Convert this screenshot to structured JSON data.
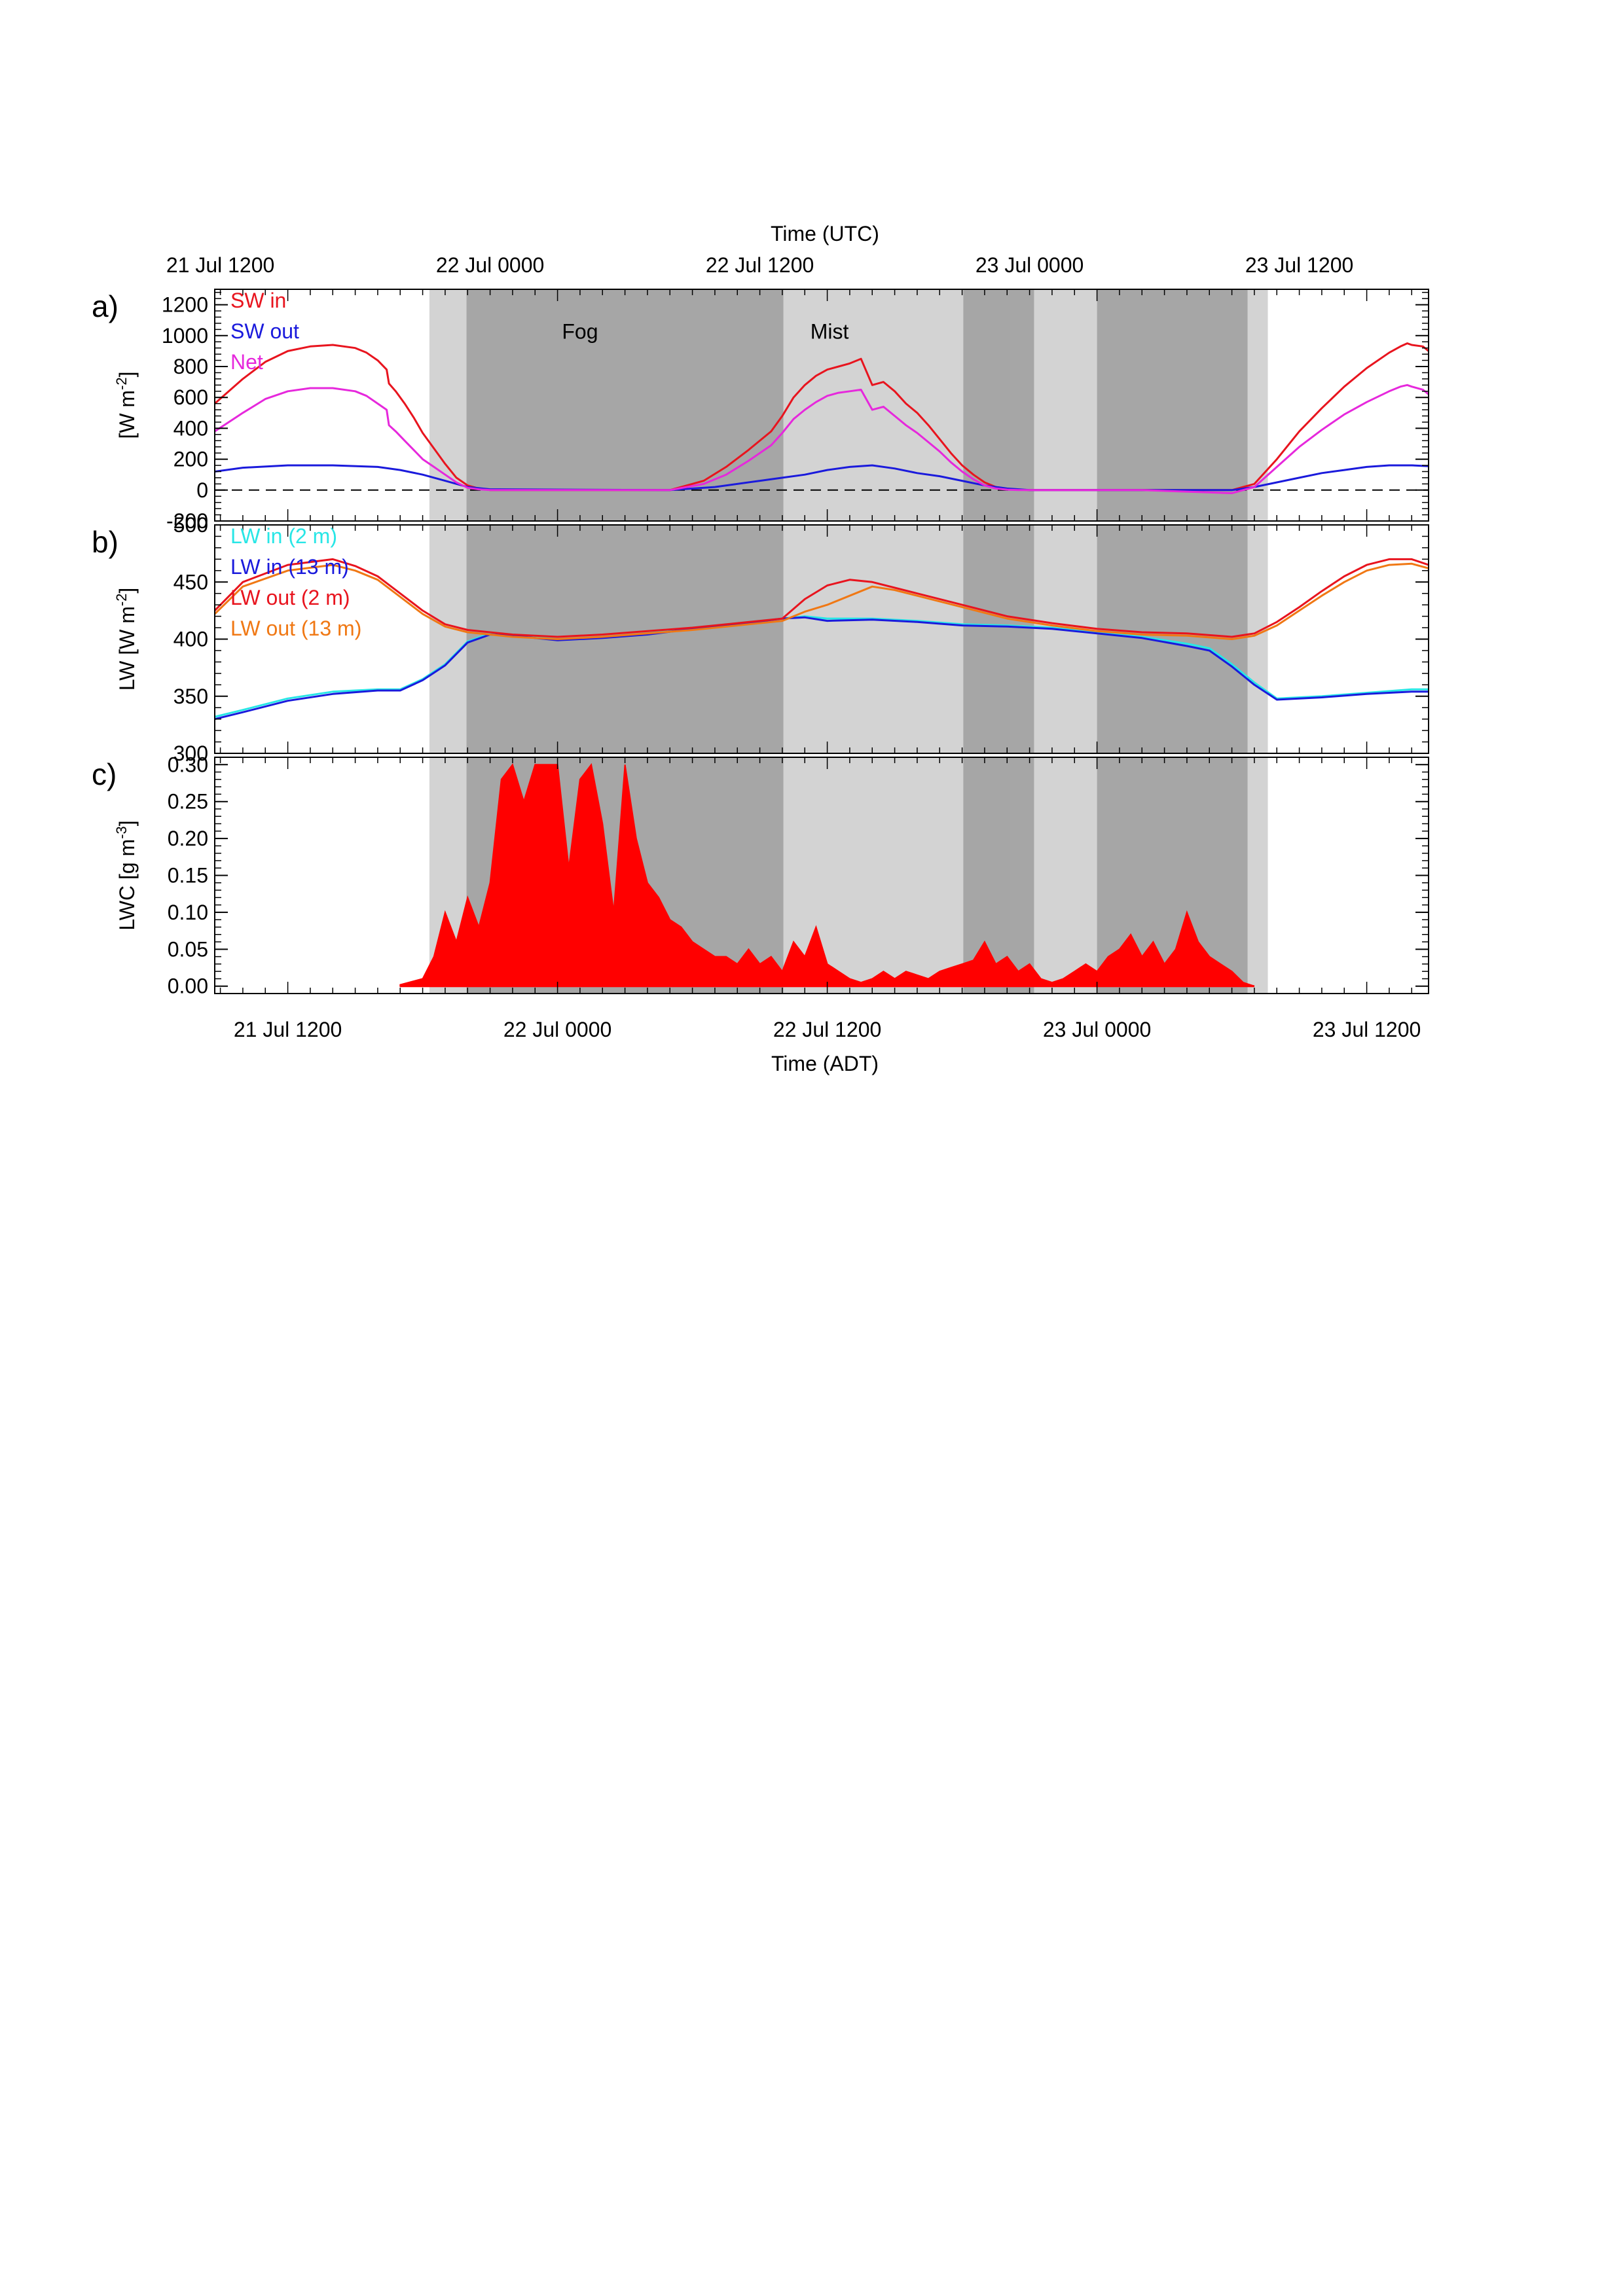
{
  "figure": {
    "top_axis_title": "Time (UTC)",
    "bottom_axis_title": "Time (ADT)",
    "top_ticks": [
      "21 Jul 1200",
      "22 Jul 0000",
      "22 Jul 1200",
      "23 Jul 0000",
      "23 Jul 1200"
    ],
    "bottom_ticks": [
      "21 Jul 1200",
      "22 Jul 0000",
      "22 Jul 1200",
      "23 Jul 0000",
      "23 Jul 1200"
    ],
    "time_unit_note": "x values are hours from 21 Jul 0000 ADT; UTC = ADT + 3 h",
    "x_range_adt_hours": [
      8.75,
      62.75
    ],
    "shading": {
      "light_color": "#d3d3d3",
      "dark_color": "#a6a6a6",
      "light": [
        [
          18.3,
          19.95
        ],
        [
          34.05,
          42.05
        ],
        [
          45.2,
          48.0
        ],
        [
          54.7,
          55.6
        ]
      ],
      "dark": [
        [
          19.95,
          34.05
        ],
        [
          42.05,
          45.2
        ],
        [
          48.0,
          54.7
        ]
      ]
    },
    "annotations": [
      {
        "text": "Fog",
        "x": 25.0,
        "panel": "a",
        "y": 980
      },
      {
        "text": "Mist",
        "x": 36.1,
        "panel": "a",
        "y": 980
      }
    ]
  },
  "chart_data": [
    {
      "type": "line",
      "panel_label": "a)",
      "ylabel": "[W m",
      "ylabel_sup": "-2",
      "ylabel_end": "]",
      "ylim": [
        -200,
        1300
      ],
      "yticks": [
        -200,
        0,
        200,
        400,
        600,
        800,
        1000,
        1200
      ],
      "zero_line": true,
      "series": [
        {
          "name": "SW in",
          "color": "#e8141e",
          "x": [
            8.75,
            10,
            11,
            12,
            13,
            14,
            15,
            15.5,
            16,
            16.4,
            16.5,
            16.8,
            17.2,
            17.6,
            18.0,
            18.5,
            19,
            19.5,
            20,
            20.5,
            21,
            25,
            29,
            30.5,
            31.5,
            32.5,
            33.5,
            34,
            34.5,
            35,
            35.5,
            36,
            36.5,
            37,
            37.5,
            38,
            38.5,
            39,
            39.5,
            40,
            40.5,
            41,
            41.5,
            42,
            42.5,
            43,
            43.5,
            44,
            44.5,
            45,
            50,
            54,
            55,
            56,
            57,
            58,
            59,
            60,
            61,
            61.5,
            61.8,
            62,
            62.5,
            62.75
          ],
          "y": [
            560,
            720,
            830,
            900,
            930,
            940,
            920,
            890,
            840,
            780,
            690,
            640,
            560,
            470,
            370,
            270,
            170,
            80,
            30,
            10,
            0,
            0,
            0,
            60,
            150,
            260,
            380,
            480,
            600,
            680,
            740,
            780,
            800,
            820,
            850,
            680,
            700,
            640,
            560,
            500,
            420,
            330,
            240,
            160,
            100,
            50,
            20,
            8,
            2,
            0,
            0,
            0,
            40,
            200,
            380,
            530,
            670,
            790,
            890,
            930,
            950,
            940,
            930,
            900
          ]
        },
        {
          "name": "SW out",
          "color": "#1a1adc",
          "x": [
            8.75,
            10,
            12,
            14,
            16,
            17,
            18,
            19,
            20,
            21,
            29,
            31,
            33,
            34,
            35,
            36,
            37,
            38,
            39,
            40,
            41,
            42,
            43,
            44,
            45,
            54,
            55,
            56,
            57,
            58,
            59,
            60,
            61,
            62,
            62.75
          ],
          "y": [
            120,
            145,
            160,
            160,
            150,
            130,
            100,
            60,
            20,
            5,
            0,
            20,
            60,
            80,
            100,
            130,
            150,
            160,
            140,
            110,
            90,
            60,
            30,
            10,
            0,
            0,
            20,
            50,
            80,
            110,
            130,
            150,
            160,
            160,
            155
          ]
        },
        {
          "name": "Net",
          "color": "#e628dc",
          "x": [
            8.75,
            10,
            11,
            12,
            13,
            14,
            15,
            15.5,
            16,
            16.4,
            16.5,
            16.8,
            17.2,
            17.6,
            18.0,
            18.5,
            19,
            19.5,
            20,
            20.5,
            21,
            25,
            29,
            30.5,
            31.5,
            32.5,
            33.5,
            34,
            34.5,
            35,
            35.5,
            36,
            36.5,
            37,
            37.5,
            38,
            38.5,
            39,
            39.5,
            40,
            40.5,
            41,
            41.5,
            42,
            42.5,
            43,
            43.5,
            44,
            44.5,
            45,
            50,
            54,
            55,
            56,
            57,
            58,
            59,
            60,
            61,
            61.5,
            61.8,
            62,
            62.5,
            62.75
          ],
          "y": [
            380,
            500,
            590,
            640,
            660,
            660,
            640,
            610,
            560,
            520,
            420,
            380,
            320,
            260,
            200,
            150,
            100,
            50,
            15,
            5,
            0,
            0,
            0,
            40,
            100,
            190,
            290,
            370,
            460,
            520,
            570,
            610,
            630,
            640,
            650,
            520,
            540,
            480,
            420,
            370,
            310,
            250,
            180,
            120,
            70,
            30,
            10,
            3,
            0,
            0,
            0,
            -20,
            20,
            150,
            280,
            390,
            490,
            570,
            640,
            670,
            680,
            670,
            650,
            620
          ]
        }
      ]
    },
    {
      "type": "line",
      "panel_label": "b)",
      "ylabel": "LW [W m",
      "ylabel_sup": "-2",
      "ylabel_end": "]",
      "ylim": [
        300,
        500
      ],
      "yticks": [
        300,
        350,
        400,
        450,
        500
      ],
      "series": [
        {
          "name": "LW in (2 m)",
          "color": "#28e6e6",
          "x": [
            8.75,
            10,
            12,
            14,
            16,
            17,
            18,
            19,
            20,
            21,
            22,
            23,
            24,
            26,
            28,
            30,
            32,
            34,
            35,
            36,
            38,
            40,
            42,
            44,
            46,
            48,
            50,
            52,
            53,
            54,
            55,
            56,
            58,
            60,
            62,
            62.75
          ],
          "y": [
            332,
            338,
            348,
            354,
            356,
            356,
            365,
            378,
            398,
            405,
            404,
            402,
            400,
            402,
            405,
            410,
            414,
            418,
            420,
            418,
            418,
            416,
            413,
            412,
            410,
            406,
            402,
            396,
            392,
            378,
            362,
            348,
            350,
            353,
            356,
            356
          ]
        },
        {
          "name": "LW in (13 m)",
          "color": "#1a1adc",
          "x": [
            8.75,
            10,
            12,
            14,
            16,
            17,
            18,
            19,
            20,
            21,
            22,
            23,
            24,
            26,
            28,
            30,
            32,
            34,
            35,
            36,
            38,
            40,
            42,
            44,
            46,
            48,
            50,
            52,
            53,
            54,
            55,
            56,
            58,
            60,
            62,
            62.75
          ],
          "y": [
            330,
            336,
            346,
            352,
            355,
            355,
            364,
            377,
            397,
            404,
            403,
            401,
            399,
            401,
            404,
            409,
            413,
            418,
            419,
            416,
            417,
            415,
            412,
            411,
            409,
            405,
            401,
            394,
            390,
            376,
            360,
            347,
            349,
            352,
            354,
            354
          ]
        },
        {
          "name": "LW out (2 m)",
          "color": "#e8141e",
          "x": [
            8.75,
            10,
            12,
            14,
            15,
            16,
            17,
            18,
            19,
            20,
            22,
            24,
            26,
            28,
            30,
            32,
            34,
            35,
            36,
            37,
            38,
            39,
            40,
            42,
            44,
            46,
            48,
            50,
            52,
            54,
            55,
            56,
            57,
            58,
            59,
            60,
            61,
            62,
            62.75
          ],
          "y": [
            425,
            450,
            465,
            470,
            464,
            455,
            440,
            425,
            413,
            408,
            404,
            402,
            404,
            407,
            410,
            414,
            418,
            435,
            447,
            452,
            450,
            445,
            440,
            430,
            420,
            414,
            409,
            406,
            405,
            402,
            405,
            415,
            428,
            442,
            455,
            465,
            470,
            470,
            465
          ]
        },
        {
          "name": "LW out (13 m)",
          "color": "#f07814",
          "x": [
            8.75,
            10,
            12,
            14,
            15,
            16,
            17,
            18,
            19,
            20,
            22,
            24,
            26,
            28,
            30,
            32,
            34,
            35,
            36,
            37,
            38,
            39,
            40,
            42,
            44,
            46,
            48,
            50,
            52,
            54,
            55,
            56,
            57,
            58,
            59,
            60,
            61,
            62,
            62.75
          ],
          "y": [
            422,
            446,
            460,
            465,
            460,
            452,
            437,
            422,
            411,
            406,
            402,
            400,
            402,
            405,
            408,
            412,
            416,
            424,
            430,
            438,
            446,
            443,
            438,
            428,
            418,
            412,
            407,
            404,
            403,
            400,
            403,
            412,
            425,
            438,
            450,
            460,
            465,
            466,
            462
          ]
        }
      ]
    },
    {
      "type": "area",
      "panel_label": "c)",
      "ylabel": "LWC [g m",
      "ylabel_sup": "-3",
      "ylabel_end": "]",
      "ylim": [
        -0.01,
        0.31
      ],
      "yticks": [
        0.0,
        0.05,
        0.1,
        0.15,
        0.2,
        0.25,
        0.3
      ],
      "ytick_labels": [
        "0.00",
        "0.05",
        "0.10",
        "0.15",
        "0.20",
        "0.25",
        "0.30"
      ],
      "series": [
        {
          "name": "LWC",
          "color": "#ff0000",
          "x": [
            17.0,
            18.0,
            18.5,
            19,
            19.5,
            20,
            20.5,
            21,
            21.5,
            22,
            22.5,
            23,
            23.5,
            24,
            24.5,
            25,
            25.5,
            26,
            26.5,
            27,
            27.5,
            28,
            28.5,
            29,
            29.5,
            30,
            30.5,
            31,
            31.5,
            32,
            32.5,
            33,
            33.5,
            34,
            34.5,
            35,
            35.5,
            36,
            36.5,
            37,
            37.5,
            38,
            38.5,
            39,
            39.5,
            40,
            40.5,
            41,
            41.5,
            42,
            42.5,
            43,
            43.5,
            44,
            44.5,
            45,
            45.5,
            46,
            46.5,
            47,
            47.5,
            48,
            48.5,
            49,
            49.5,
            50,
            50.5,
            51,
            51.5,
            52,
            52.5,
            53,
            53.5,
            54,
            54.5,
            55
          ],
          "y": [
            0.002,
            0.01,
            0.04,
            0.1,
            0.06,
            0.12,
            0.08,
            0.14,
            0.28,
            0.3,
            0.25,
            0.3,
            0.3,
            0.3,
            0.16,
            0.28,
            0.3,
            0.22,
            0.1,
            0.3,
            0.2,
            0.14,
            0.12,
            0.09,
            0.08,
            0.06,
            0.05,
            0.04,
            0.04,
            0.03,
            0.05,
            0.03,
            0.04,
            0.02,
            0.06,
            0.04,
            0.08,
            0.03,
            0.02,
            0.01,
            0.005,
            0.01,
            0.02,
            0.01,
            0.02,
            0.015,
            0.01,
            0.02,
            0.025,
            0.03,
            0.035,
            0.06,
            0.03,
            0.04,
            0.02,
            0.03,
            0.01,
            0.005,
            0.01,
            0.02,
            0.03,
            0.02,
            0.04,
            0.05,
            0.07,
            0.04,
            0.06,
            0.03,
            0.05,
            0.1,
            0.06,
            0.04,
            0.03,
            0.02,
            0.005,
            0.0
          ]
        }
      ]
    }
  ],
  "legends": {
    "a": [
      {
        "label": "SW in",
        "color": "#e8141e"
      },
      {
        "label": "SW out",
        "color": "#1a1adc"
      },
      {
        "label": "Net",
        "color": "#e628dc"
      }
    ],
    "b": [
      {
        "label": "LW in (2 m)",
        "color": "#28e6e6"
      },
      {
        "label": "LW in (13 m)",
        "color": "#1a1adc"
      },
      {
        "label": "LW out (2 m)",
        "color": "#e8141e"
      },
      {
        "label": "LW out (13 m)",
        "color": "#f07814"
      }
    ]
  }
}
